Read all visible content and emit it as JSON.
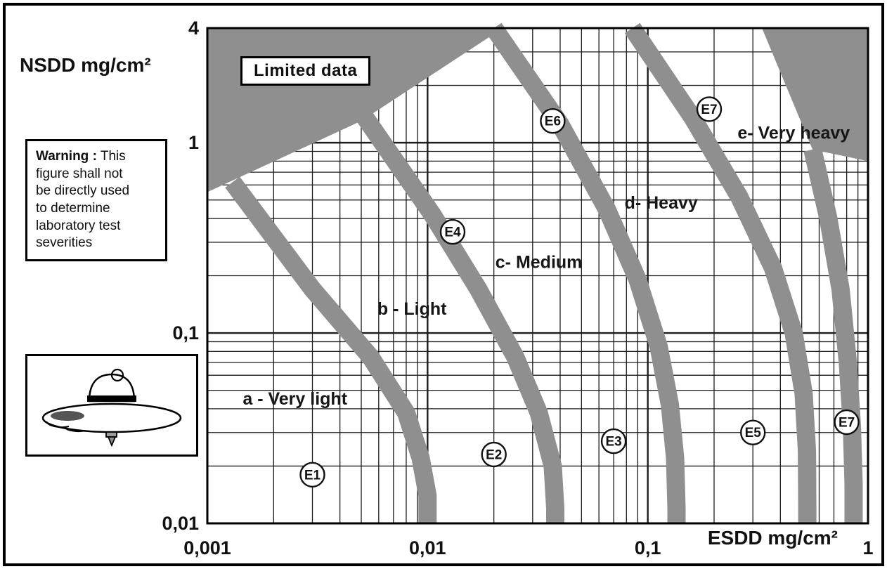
{
  "figure": {
    "background": "#ffffff",
    "frame_color": "#000000"
  },
  "texts": {
    "limited_data_label": "Limited data",
    "warning_lead": "Warning :",
    "warning_rest": " This\nfigure shall not\nbe directly used\nto determine\nlaboratory test\nseverities"
  },
  "chart_data": {
    "type": "scatter",
    "xlabel": "ESDD mg/cm²",
    "ylabel": "NSDD mg/cm²",
    "x_scale": "log",
    "y_scale": "log",
    "xlim": [
      0.001,
      1
    ],
    "ylim": [
      0.01,
      4
    ],
    "grid": "full log minor grid, both axes",
    "legend": "none",
    "line_color": "#1c1c1c",
    "band_color": "#8f8f8f",
    "x_ticks": [
      {
        "value": 0.001,
        "label": "0,001"
      },
      {
        "value": 0.01,
        "label": "0,01"
      },
      {
        "value": 0.1,
        "label": "0,1"
      },
      {
        "value": 1,
        "label": "1"
      }
    ],
    "y_ticks": [
      {
        "value": 4,
        "label": "4"
      },
      {
        "value": 1,
        "label": "1"
      },
      {
        "value": 0.1,
        "label": "0,1"
      },
      {
        "value": 0.01,
        "label": "0,01"
      }
    ],
    "zones": [
      {
        "key": "a",
        "label": "a - Very light",
        "label_at": [
          0.0025,
          0.042
        ]
      },
      {
        "key": "b",
        "label": "b - Light",
        "label_at": [
          0.0085,
          0.125
        ]
      },
      {
        "key": "c",
        "label": "c- Medium",
        "label_at": [
          0.032,
          0.22
        ]
      },
      {
        "key": "d",
        "label": "d- Heavy",
        "label_at": [
          0.115,
          0.45
        ]
      },
      {
        "key": "e",
        "label": "e- Very heavy",
        "label_at": [
          0.46,
          1.05
        ]
      }
    ],
    "boundary_bands": [
      {
        "id": "a-b",
        "path": [
          [
            0.0013,
            0.62
          ],
          [
            0.003,
            0.17
          ],
          [
            0.0055,
            0.075
          ],
          [
            0.008,
            0.038
          ],
          [
            0.0093,
            0.022
          ],
          [
            0.01,
            0.014
          ],
          [
            0.01,
            0.01
          ]
        ]
      },
      {
        "id": "b-c",
        "path": [
          [
            0.005,
            1.45
          ],
          [
            0.0105,
            0.42
          ],
          [
            0.017,
            0.17
          ],
          [
            0.025,
            0.075
          ],
          [
            0.032,
            0.038
          ],
          [
            0.037,
            0.02
          ],
          [
            0.038,
            0.012
          ],
          [
            0.038,
            0.01
          ]
        ]
      },
      {
        "id": "c-d",
        "path": [
          [
            0.02,
            4
          ],
          [
            0.04,
            1.25
          ],
          [
            0.065,
            0.45
          ],
          [
            0.09,
            0.19
          ],
          [
            0.112,
            0.085
          ],
          [
            0.126,
            0.042
          ],
          [
            0.133,
            0.022
          ],
          [
            0.135,
            0.012
          ],
          [
            0.135,
            0.01
          ]
        ]
      },
      {
        "id": "d-e",
        "path": [
          [
            0.085,
            4
          ],
          [
            0.16,
            1.35
          ],
          [
            0.26,
            0.52
          ],
          [
            0.37,
            0.22
          ],
          [
            0.46,
            0.1
          ],
          [
            0.51,
            0.048
          ],
          [
            0.528,
            0.024
          ],
          [
            0.53,
            0.012
          ],
          [
            0.53,
            0.01
          ]
        ]
      },
      {
        "id": "e-limit",
        "path": [
          [
            0.56,
            0.92
          ],
          [
            0.66,
            0.4
          ],
          [
            0.75,
            0.17
          ],
          [
            0.81,
            0.07
          ],
          [
            0.845,
            0.032
          ],
          [
            0.86,
            0.016
          ],
          [
            0.86,
            0.01
          ]
        ]
      }
    ],
    "limited_data_regions": [
      {
        "name": "top-left",
        "polygon": [
          [
            0.001,
            4
          ],
          [
            0.022,
            4
          ],
          [
            0.005,
            1.3
          ],
          [
            0.001,
            0.55
          ]
        ]
      },
      {
        "name": "top-right",
        "polygon": [
          [
            0.33,
            4
          ],
          [
            1,
            4
          ],
          [
            1,
            0.8
          ],
          [
            0.56,
            0.92
          ]
        ]
      }
    ],
    "example_points": [
      {
        "label": "E1",
        "esdd": 0.003,
        "nsdd": 0.018
      },
      {
        "label": "E2",
        "esdd": 0.02,
        "nsdd": 0.023
      },
      {
        "label": "E3",
        "esdd": 0.07,
        "nsdd": 0.027
      },
      {
        "label": "E4",
        "esdd": 0.013,
        "nsdd": 0.34
      },
      {
        "label": "E5",
        "esdd": 0.3,
        "nsdd": 0.03
      },
      {
        "label": "E6",
        "esdd": 0.037,
        "nsdd": 1.3
      },
      {
        "label": "E7",
        "esdd": 0.19,
        "nsdd": 1.5
      },
      {
        "label": "E7",
        "esdd": 0.8,
        "nsdd": 0.034
      }
    ]
  }
}
